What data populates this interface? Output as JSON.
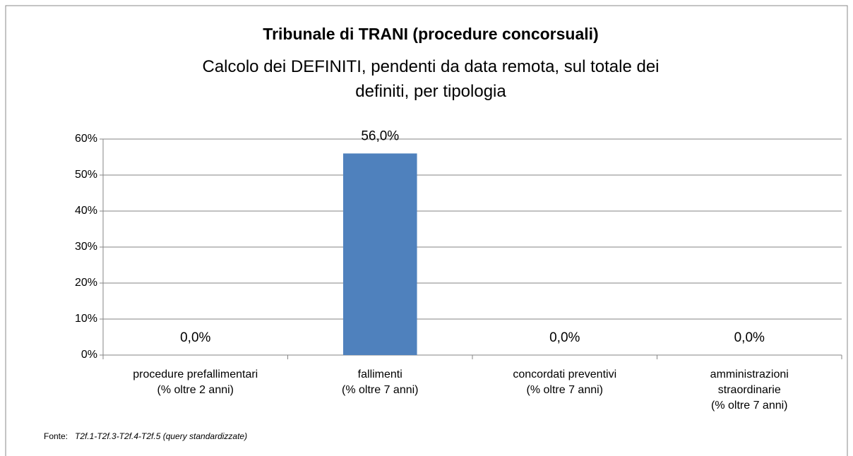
{
  "chart_data": {
    "type": "bar",
    "title": "Tribunale di TRANI  (procedure concorsuali)",
    "subtitle": "Calcolo dei DEFINITI, pendenti da data remota, sul totale dei\ndefiniti,  per tipologia",
    "categories": [
      "procedure prefallimentari\n(% oltre 2 anni)",
      "fallimenti\n(% oltre 7 anni)",
      "concordati preventivi\n(% oltre 7 anni)",
      "amministrazioni\nstraordinarie\n(% oltre 7 anni)"
    ],
    "values": [
      0,
      56,
      0,
      0
    ],
    "value_labels": [
      "0,0%",
      "56,0%",
      "0,0%",
      "0,0%"
    ],
    "color": "#4f81bd",
    "ylim": [
      0,
      60
    ],
    "yticks": [
      {
        "value": 0,
        "label": "0%"
      },
      {
        "value": 10,
        "label": "10%"
      },
      {
        "value": 20,
        "label": "20%"
      },
      {
        "value": 30,
        "label": "30%"
      },
      {
        "value": 40,
        "label": "40%"
      },
      {
        "value": 50,
        "label": "50%"
      },
      {
        "value": 60,
        "label": "60%"
      }
    ],
    "grid": true,
    "source_label": "Fonte:",
    "source": "T2f.1-T2f.3-T2f.4-T2f.5 (query standardizzate)"
  }
}
